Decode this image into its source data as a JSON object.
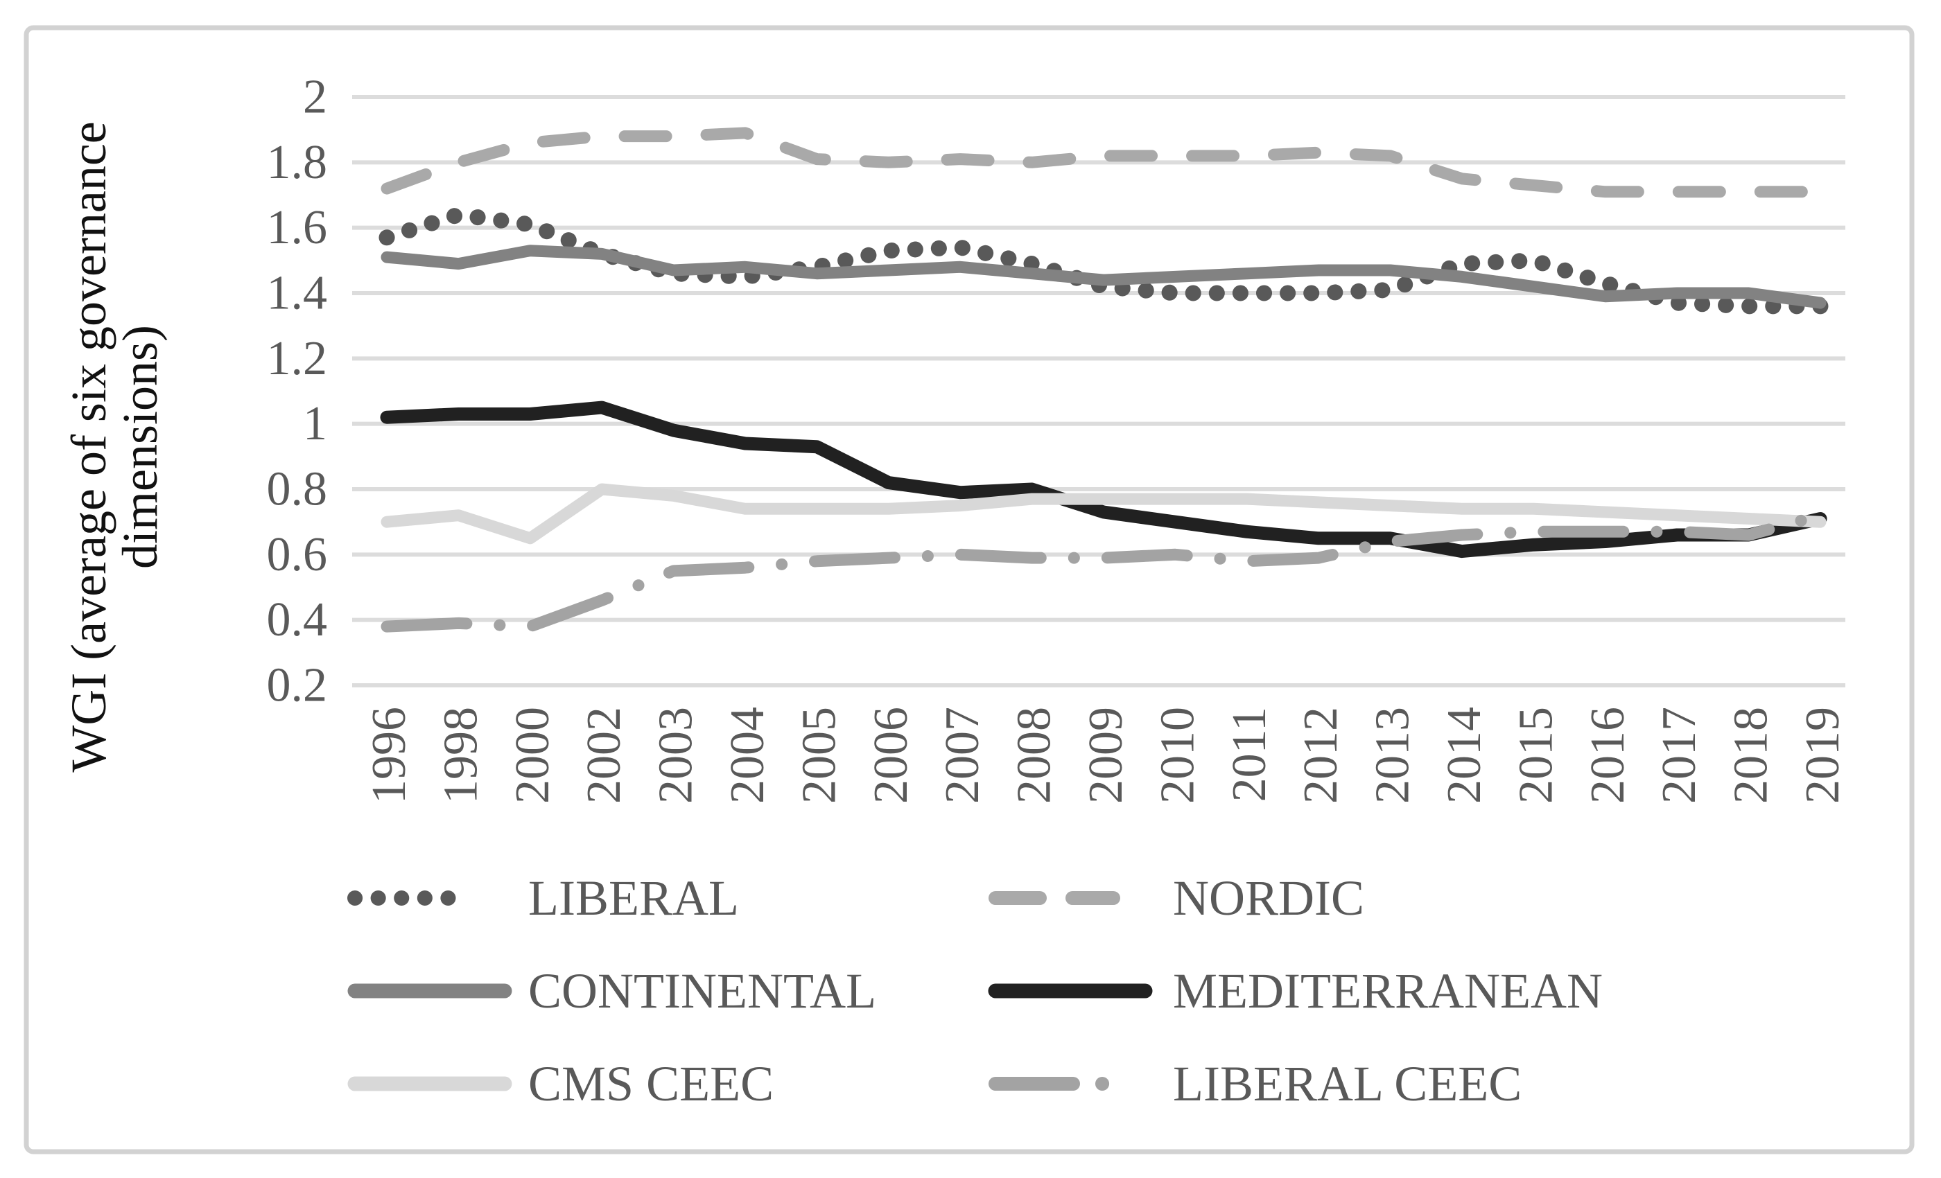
{
  "figure": {
    "background": "#ffffff",
    "border_color": "#d2d2d2",
    "gridline_color": "#dcdcdc",
    "tick_text_color": "#595959",
    "title_text_color": "#111111"
  },
  "y_axis": {
    "title_line1": "WGI (average of six governance",
    "title_line2": "dimensions)",
    "tick_labels": [
      "2",
      "1.8",
      "1.6",
      "1.4",
      "1.2",
      "1",
      "0.8",
      "0.6",
      "0.4",
      "0.2"
    ]
  },
  "chart_data": {
    "type": "line",
    "title": "",
    "xlabel": "",
    "ylabel": "WGI (average of six governance dimensions)",
    "ylim": [
      0.2,
      2.0
    ],
    "ytick_step": 0.2,
    "grid": true,
    "legend_position": "bottom",
    "categories": [
      "1996",
      "1998",
      "2000",
      "2002",
      "2003",
      "2004",
      "2005",
      "2006",
      "2007",
      "2008",
      "2009",
      "2010",
      "2011",
      "2012",
      "2013",
      "2014",
      "2015",
      "2016",
      "2017",
      "2018",
      "2019"
    ],
    "series": [
      {
        "name": "LIBERAL",
        "style": "dotted",
        "color": "#595959",
        "values": [
          1.57,
          1.64,
          1.61,
          1.52,
          1.46,
          1.45,
          1.48,
          1.53,
          1.54,
          1.49,
          1.42,
          1.4,
          1.4,
          1.4,
          1.41,
          1.49,
          1.5,
          1.43,
          1.37,
          1.36,
          1.36
        ]
      },
      {
        "name": "NORDIC",
        "style": "dashed",
        "color": "#a9a9a9",
        "values": [
          1.72,
          1.8,
          1.86,
          1.88,
          1.88,
          1.89,
          1.81,
          1.8,
          1.81,
          1.8,
          1.82,
          1.82,
          1.82,
          1.83,
          1.82,
          1.75,
          1.73,
          1.71,
          1.71,
          1.71,
          1.71
        ]
      },
      {
        "name": "CONTINENTAL",
        "style": "solid",
        "color": "#828282",
        "values": [
          1.51,
          1.49,
          1.53,
          1.52,
          1.47,
          1.48,
          1.46,
          1.47,
          1.48,
          1.46,
          1.44,
          1.45,
          1.46,
          1.47,
          1.47,
          1.45,
          1.42,
          1.39,
          1.4,
          1.4,
          1.37
        ]
      },
      {
        "name": "MEDITERRANEAN",
        "style": "solid",
        "color": "#212121",
        "values": [
          1.02,
          1.03,
          1.03,
          1.05,
          0.98,
          0.94,
          0.93,
          0.82,
          0.79,
          0.8,
          0.73,
          0.7,
          0.67,
          0.65,
          0.65,
          0.61,
          0.63,
          0.64,
          0.66,
          0.66,
          0.71
        ]
      },
      {
        "name": "CMS CEEC",
        "style": "solid",
        "color": "#d8d8d8",
        "values": [
          0.7,
          0.72,
          0.65,
          0.8,
          0.78,
          0.74,
          0.74,
          0.74,
          0.75,
          0.77,
          0.77,
          0.77,
          0.77,
          0.76,
          0.75,
          0.74,
          0.74,
          0.73,
          0.72,
          0.71,
          0.7
        ]
      },
      {
        "name": "LIBERAL CEEC",
        "style": "dashdot",
        "color": "#a3a3a3",
        "values": [
          0.38,
          0.39,
          0.38,
          0.46,
          0.55,
          0.56,
          0.58,
          0.59,
          0.6,
          0.59,
          0.59,
          0.6,
          0.58,
          0.59,
          0.64,
          0.66,
          0.67,
          0.67,
          0.67,
          0.66,
          0.72
        ]
      }
    ]
  },
  "legend": {
    "labels": [
      "LIBERAL",
      "NORDIC",
      "CONTINENTAL",
      "MEDITERRANEAN",
      "CMS CEEC",
      "LIBERAL CEEC"
    ]
  }
}
